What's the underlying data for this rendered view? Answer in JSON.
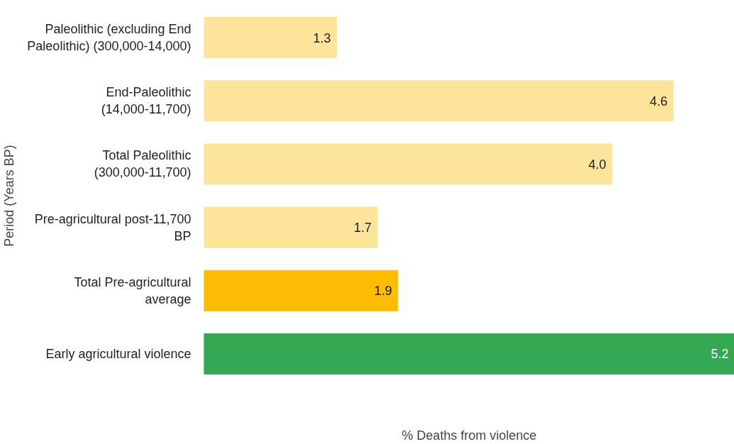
{
  "chart_data": {
    "type": "bar",
    "orientation": "horizontal",
    "xlabel": "% Deaths from violence",
    "ylabel": "Period (Years BP)",
    "categories": [
      "Paleolithic (excluding End Paleolithic) (300,000-14,000)",
      "End-Paleolithic (14,000-11,700)",
      "Total Paleolithic (300,000-11,700)",
      "Pre-agricultural post-11,700 BP",
      "Total Pre-agricultural average",
      "Early agricultural violence"
    ],
    "values": [
      1.3,
      4.6,
      4.0,
      1.7,
      1.9,
      5.2
    ],
    "colors": [
      "#fde49b",
      "#fde49b",
      "#fde49b",
      "#fde49b",
      "#fbbc04",
      "#34a853"
    ],
    "value_labels": [
      "1.3",
      "4.6",
      "4.0",
      "1.7",
      "1.9",
      "5.2"
    ],
    "grid": false
  }
}
